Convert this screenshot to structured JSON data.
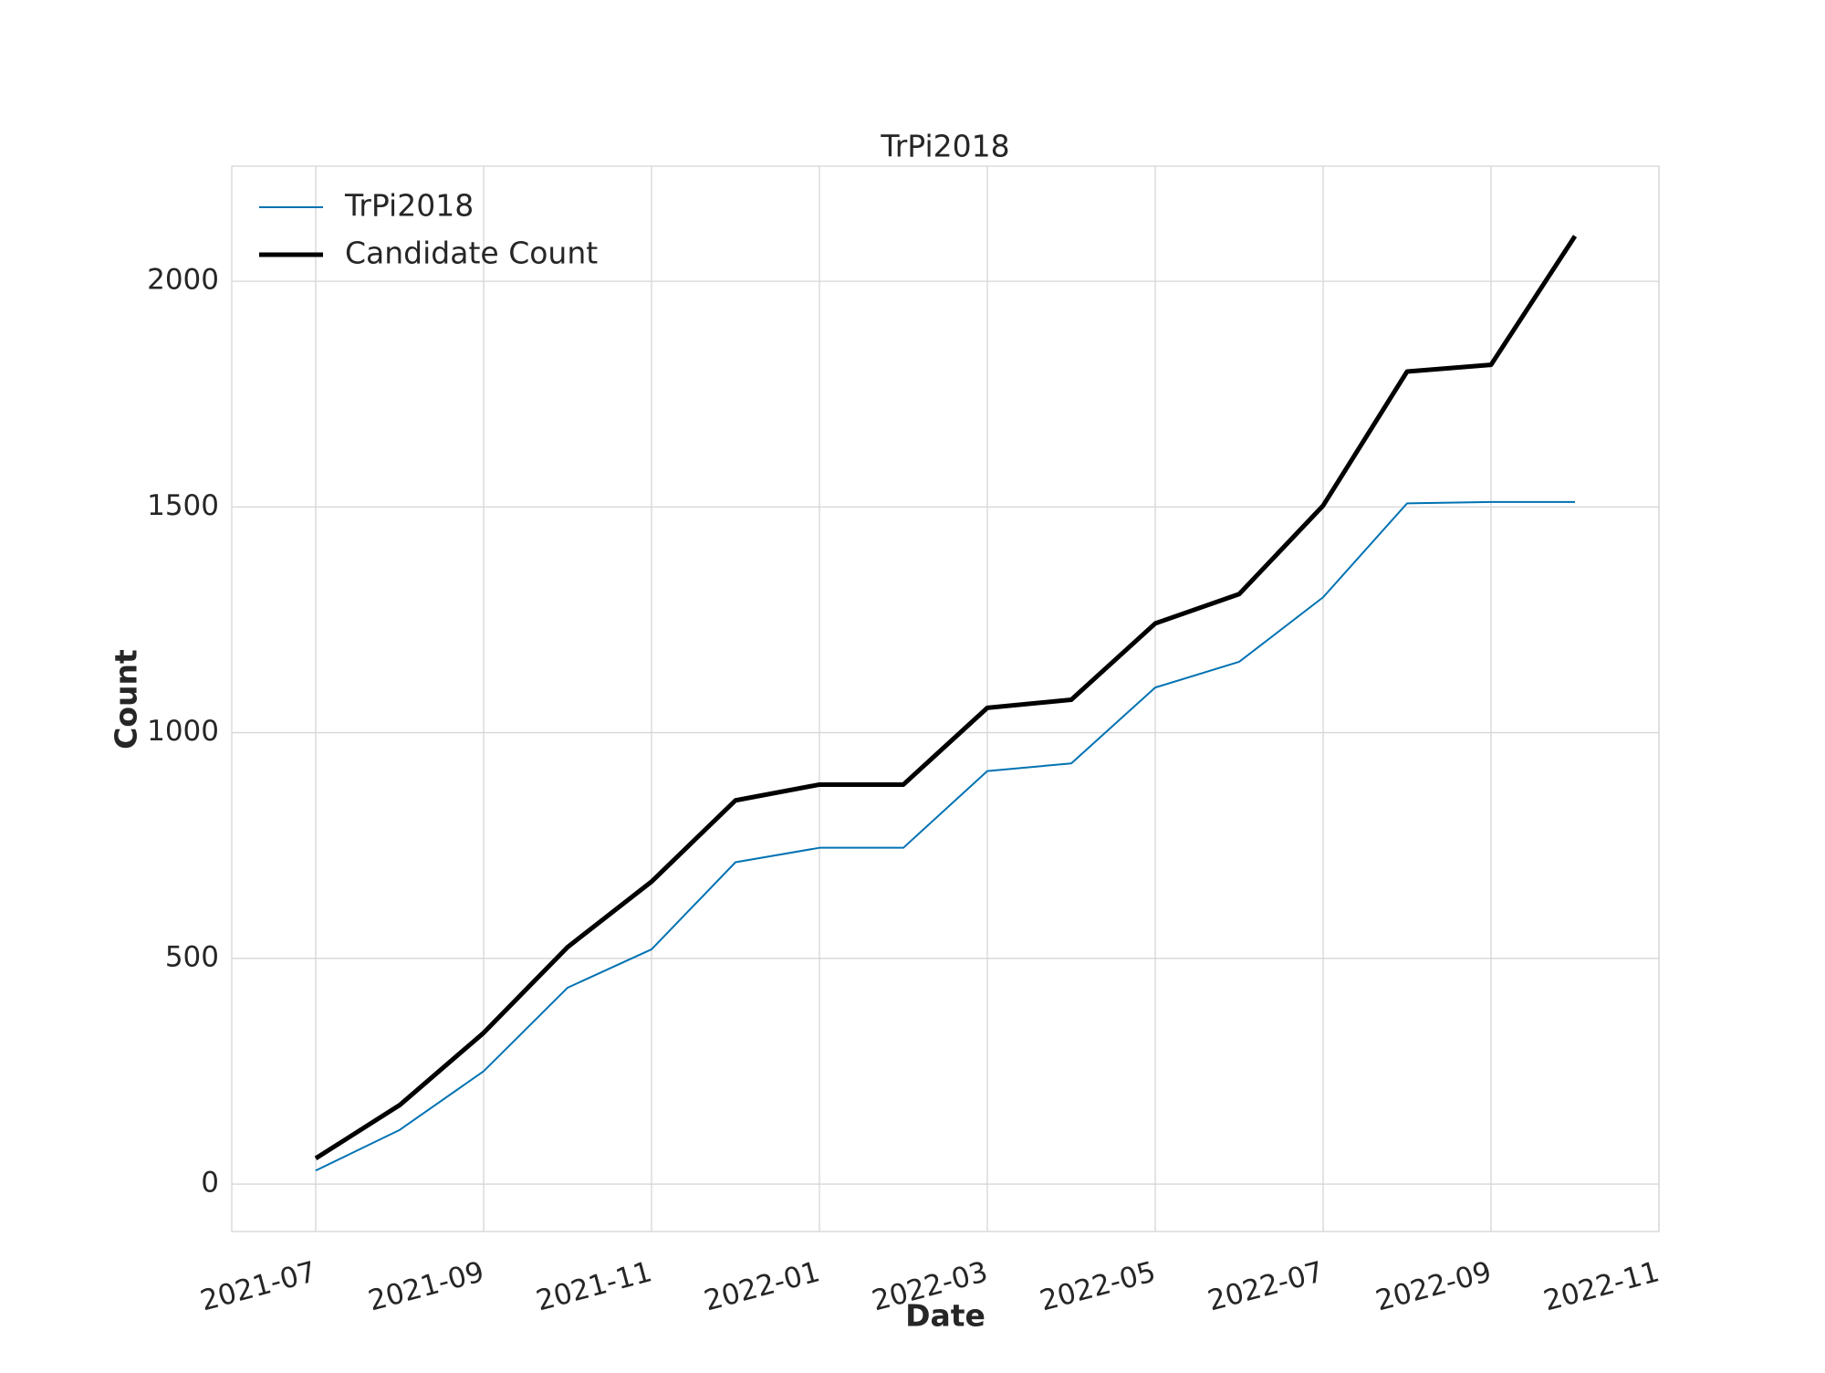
{
  "chart_data": {
    "type": "line",
    "title": "TrPi2018",
    "x_label": "Date",
    "y_label": "Count",
    "x": [
      "2021-07",
      "2021-08",
      "2021-09",
      "2021-10",
      "2021-11",
      "2021-12",
      "2022-01",
      "2022-02",
      "2022-03",
      "2022-04",
      "2022-05",
      "2022-06",
      "2022-07",
      "2022-08",
      "2022-09",
      "2022-10"
    ],
    "series": [
      {
        "name": "TrPi2018",
        "color": "#0072b2",
        "values": [
          30,
          120,
          250,
          435,
          520,
          713,
          745,
          745,
          915,
          932,
          1100,
          1157,
          1300,
          1508,
          1511,
          1511
        ]
      },
      {
        "name": "Candidate Count",
        "color": "#000000",
        "values": [
          57,
          175,
          335,
          525,
          670,
          850,
          885,
          885,
          1055,
          1073,
          1242,
          1307,
          1503,
          1800,
          1815,
          2100
        ]
      }
    ],
    "xlim": [
      "2021-06",
      "2022-11"
    ],
    "xticks": [
      "2021-07",
      "2021-09",
      "2021-11",
      "2022-01",
      "2022-03",
      "2022-05",
      "2022-07",
      "2022-09",
      "2022-11"
    ],
    "ylim": [
      -105,
      2255
    ],
    "yticks": [
      0,
      500,
      1000,
      1500,
      2000
    ],
    "grid": true,
    "legend": "upper left"
  }
}
